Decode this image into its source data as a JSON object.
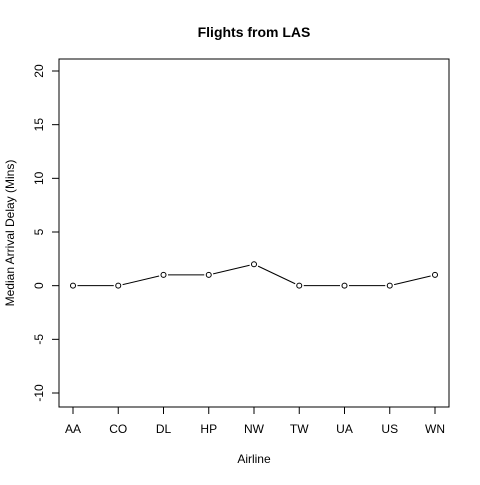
{
  "chart_data": {
    "type": "line",
    "title": "Flights from LAS",
    "xlabel": "Airline",
    "ylabel": "Median Arrival Delay (Mins)",
    "categories": [
      "AA",
      "CO",
      "DL",
      "HP",
      "NW",
      "TW",
      "UA",
      "US",
      "WN"
    ],
    "series": [
      {
        "values": [
          0,
          0,
          1,
          1,
          2,
          0,
          0,
          0,
          1
        ]
      }
    ],
    "ylim": [
      -10,
      20
    ],
    "yticks": [
      -10,
      -5,
      0,
      5,
      10,
      15,
      20
    ],
    "grid": false,
    "markers": "open-circle",
    "line_color": "#000000"
  }
}
